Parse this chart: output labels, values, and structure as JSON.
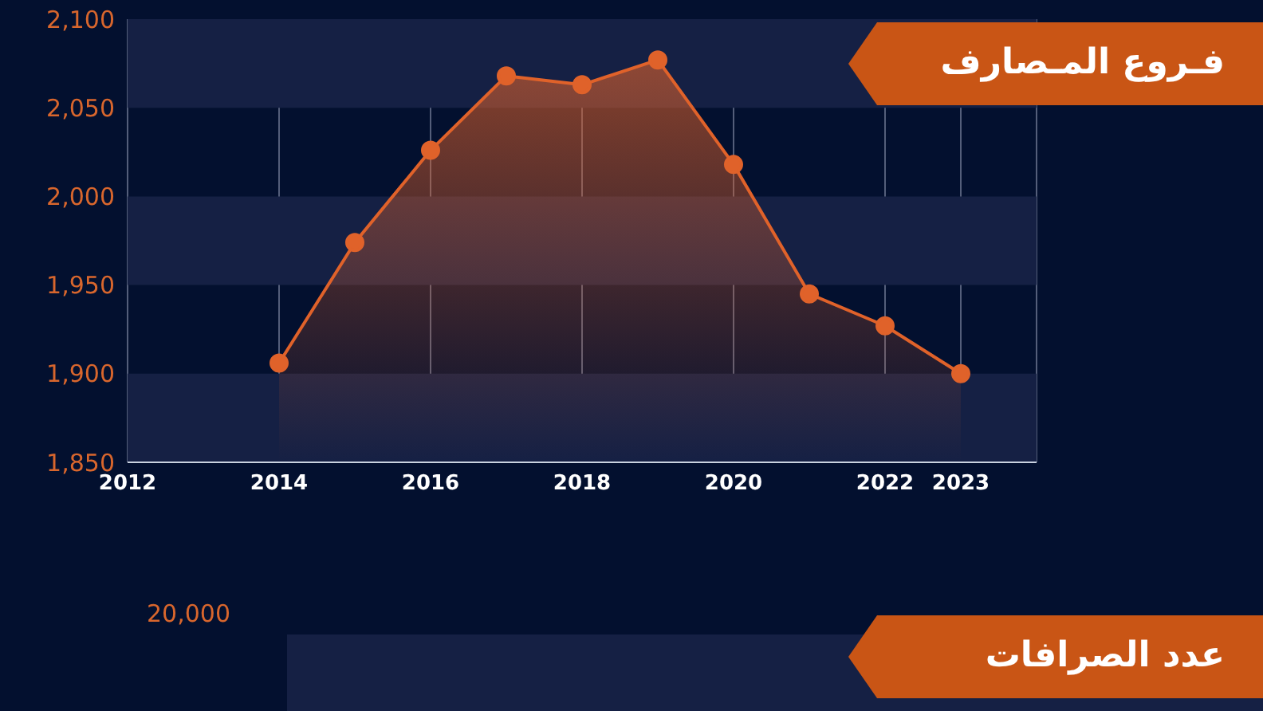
{
  "chart_data": [
    {
      "type": "area",
      "title": "فـروع المـصارف",
      "x": [
        2014,
        2015,
        2016,
        2017,
        2018,
        2019,
        2020,
        2021,
        2022,
        2023
      ],
      "series": [
        {
          "color": "#e0622a",
          "values": [
            1906,
            1974,
            2026,
            2068,
            2063,
            2077,
            2018,
            1945,
            1927,
            1900
          ]
        }
      ],
      "xlim": [
        2012,
        2024
      ],
      "xticks": [
        2012,
        2014,
        2016,
        2018,
        2020,
        2022,
        2023
      ],
      "ylim": [
        1850,
        2100
      ],
      "yticks": [
        {
          "value": 1850,
          "label": "1,850"
        },
        {
          "value": 1900,
          "label": "1,900"
        },
        {
          "value": 1950,
          "label": "1,950"
        },
        {
          "value": 2000,
          "label": "2,000"
        },
        {
          "value": 2050,
          "label": "2,050"
        },
        {
          "value": 2100,
          "label": "2,100"
        }
      ],
      "bands": [
        {
          "axis": "y",
          "from": 1850,
          "to": 1900,
          "color": "#152044"
        },
        {
          "axis": "y",
          "from": 1950,
          "to": 2000,
          "color": "#152044"
        },
        {
          "axis": "y",
          "from": 2050,
          "to": 2100,
          "color": "#152044"
        }
      ],
      "grid": "x",
      "marker": "circle"
    },
    {
      "type": "other",
      "title": "عدد الصرافات",
      "annotations": [
        "20,000"
      ]
    }
  ]
}
